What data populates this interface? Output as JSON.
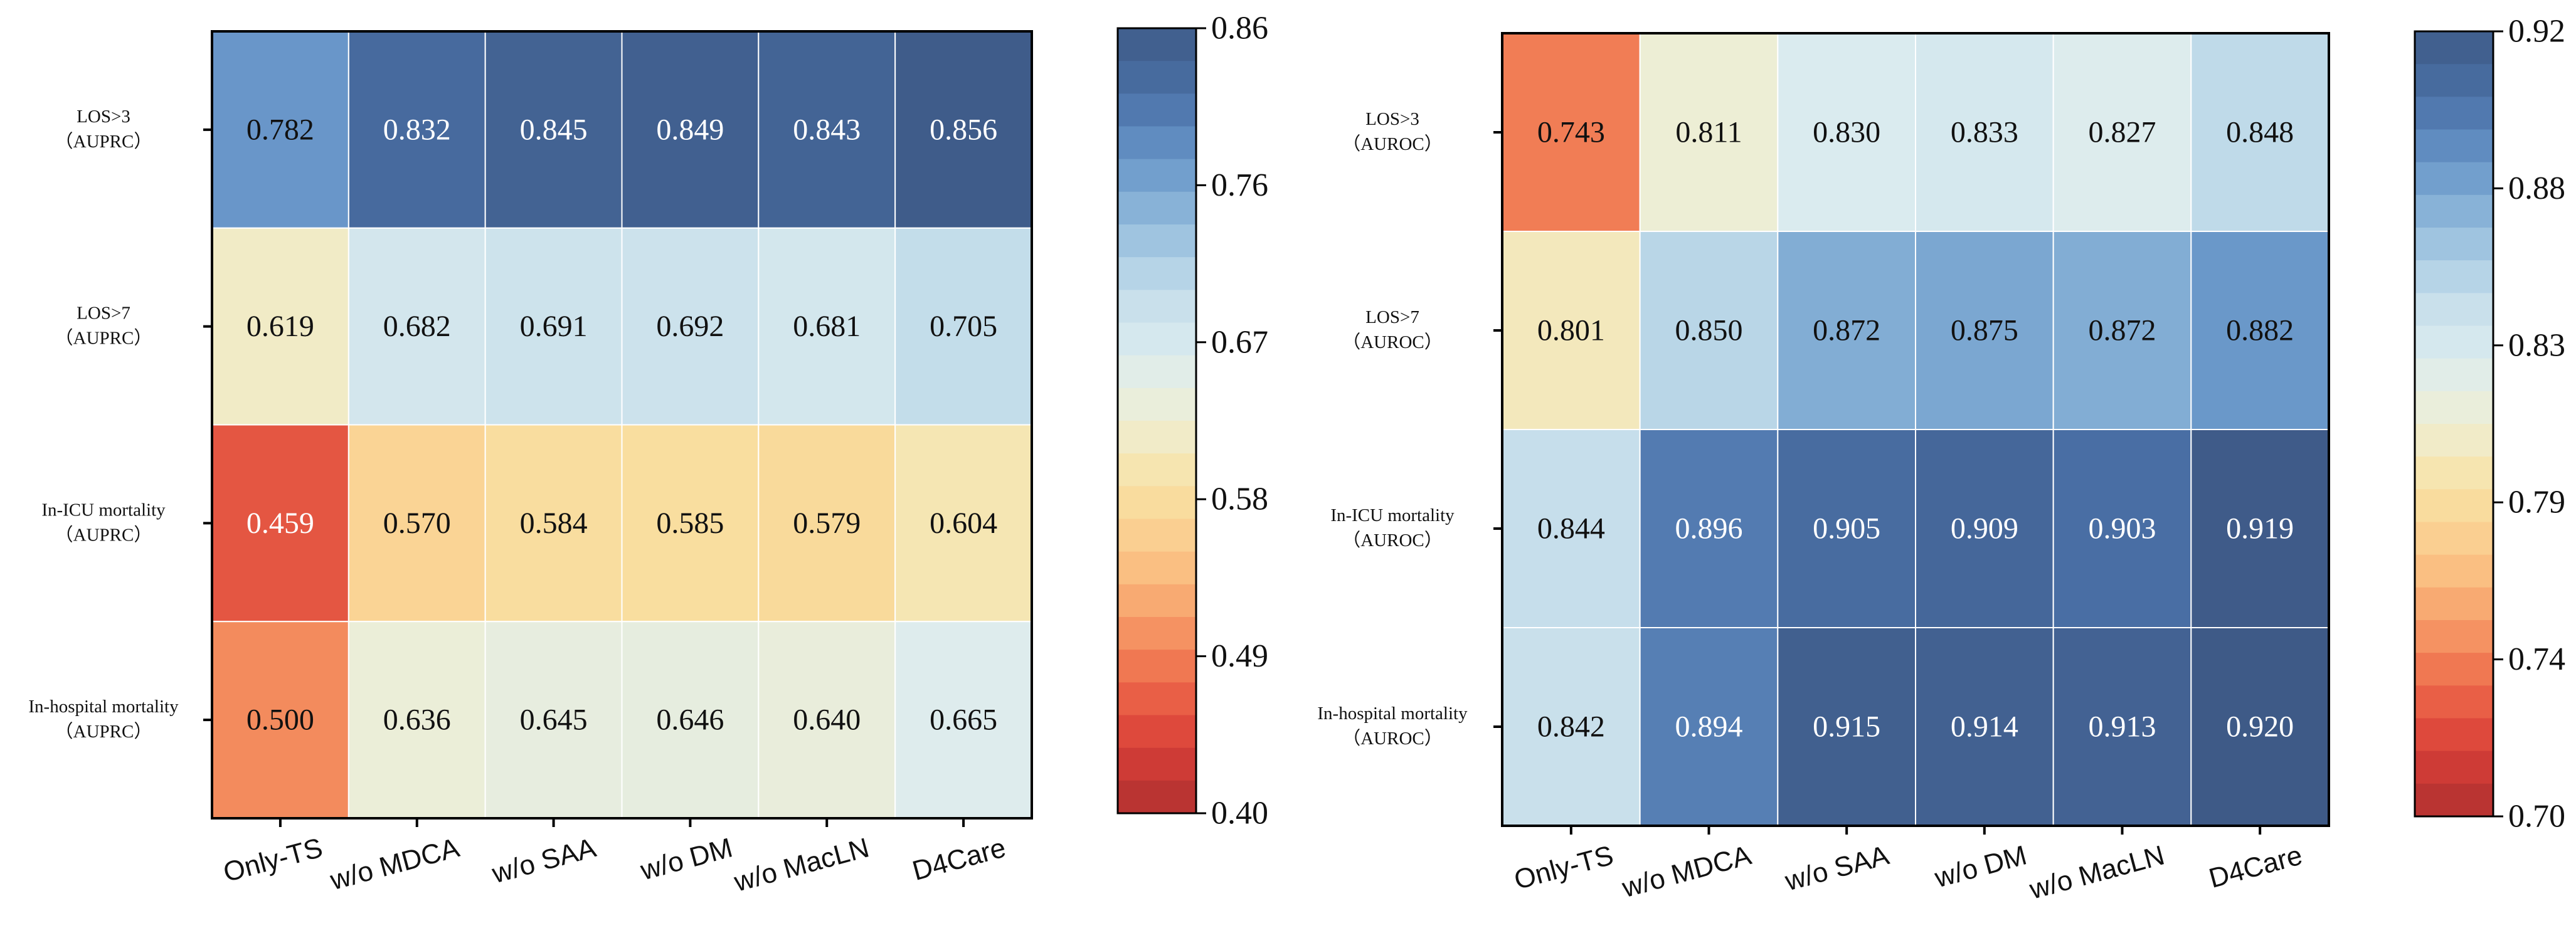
{
  "chart_data": [
    {
      "type": "heatmap",
      "title": "",
      "rows": [
        {
          "label_line1": "LOS>3",
          "label_line2": "（AUPRC）"
        },
        {
          "label_line1": "LOS>7",
          "label_line2": "（AUPRC）"
        },
        {
          "label_line1": "In-ICU mortality",
          "label_line2": "（AUPRC）"
        },
        {
          "label_line1": "In-hospital mortality",
          "label_line2": "（AUPRC）"
        }
      ],
      "columns": [
        "Only-TS",
        "w/o MDCA",
        "w/o SAA",
        "w/o DM",
        "w/o MacLN",
        "D4Care"
      ],
      "values": [
        [
          0.782,
          0.832,
          0.845,
          0.849,
          0.843,
          0.856
        ],
        [
          0.619,
          0.682,
          0.691,
          0.692,
          0.681,
          0.705
        ],
        [
          0.459,
          0.57,
          0.584,
          0.585,
          0.579,
          0.604
        ],
        [
          0.5,
          0.636,
          0.645,
          0.646,
          0.64,
          0.665
        ]
      ],
      "value_labels": [
        [
          "0.782",
          "0.832",
          "0.845",
          "0.849",
          "0.843",
          "0.856"
        ],
        [
          "0.619",
          "0.682",
          "0.691",
          "0.692",
          "0.681",
          "0.705"
        ],
        [
          "0.459",
          "0.570",
          "0.584",
          "0.585",
          "0.579",
          "0.604"
        ],
        [
          "0.500",
          "0.636",
          "0.645",
          "0.646",
          "0.640",
          "0.665"
        ]
      ],
      "colorbar": {
        "min": 0.4,
        "max": 0.86,
        "ticks": [
          "0.86",
          "0.76",
          "0.67",
          "0.58",
          "0.49",
          "0.40"
        ],
        "colormap": "RdYlBu"
      }
    },
    {
      "type": "heatmap",
      "title": "",
      "rows": [
        {
          "label_line1": "LOS>3",
          "label_line2": "（AUROC）"
        },
        {
          "label_line1": "LOS>7",
          "label_line2": "（AUROC）"
        },
        {
          "label_line1": "In-ICU mortality",
          "label_line2": "（AUROC）"
        },
        {
          "label_line1": "In-hospital mortality",
          "label_line2": "（AUROC）"
        }
      ],
      "columns": [
        "Only-TS",
        "w/o MDCA",
        "w/o SAA",
        "w/o DM",
        "w/o MacLN",
        "D4Care"
      ],
      "values": [
        [
          0.743,
          0.811,
          0.83,
          0.833,
          0.827,
          0.848
        ],
        [
          0.801,
          0.85,
          0.872,
          0.875,
          0.872,
          0.882
        ],
        [
          0.844,
          0.896,
          0.905,
          0.909,
          0.903,
          0.919
        ],
        [
          0.842,
          0.894,
          0.915,
          0.914,
          0.913,
          0.92
        ]
      ],
      "value_labels": [
        [
          "0.743",
          "0.811",
          "0.830",
          "0.833",
          "0.827",
          "0.848"
        ],
        [
          "0.801",
          "0.850",
          "0.872",
          "0.875",
          "0.872",
          "0.882"
        ],
        [
          "0.844",
          "0.896",
          "0.905",
          "0.909",
          "0.903",
          "0.919"
        ],
        [
          "0.842",
          "0.894",
          "0.915",
          "0.914",
          "0.913",
          "0.920"
        ]
      ],
      "colorbar": {
        "min": 0.7,
        "max": 0.92,
        "ticks": [
          "0.92",
          "0.88",
          "0.83",
          "0.79",
          "0.74",
          "0.70"
        ],
        "colormap": "RdYlBu"
      }
    }
  ],
  "colormap_stops": [
    "#b03030",
    "#d83e38",
    "#ee6a4a",
    "#f7a06a",
    "#fbc98a",
    "#f8e2a4",
    "#eeeed4",
    "#dcecef",
    "#c2dcea",
    "#93bcdc",
    "#6795c8",
    "#4a70a6",
    "#3e5a87"
  ]
}
